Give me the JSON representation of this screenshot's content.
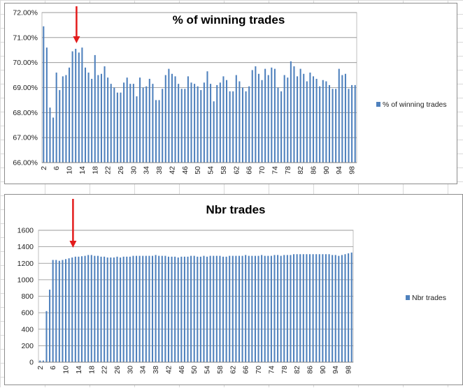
{
  "chart_data": [
    {
      "type": "bar",
      "title": "% of winning trades",
      "xlabel": "",
      "ylabel": "",
      "legend_position": "right",
      "grid": true,
      "ylim": [
        66.0,
        72.0
      ],
      "y_ticks": [
        "72.00%",
        "71.00%",
        "70.00%",
        "69.00%",
        "68.00%",
        "67.00%",
        "66.00%"
      ],
      "y_tick_values": [
        72,
        71,
        70,
        69,
        68,
        67,
        66
      ],
      "x_tick_labels": [
        "2",
        "6",
        "10",
        "14",
        "18",
        "22",
        "26",
        "30",
        "34",
        "38",
        "42",
        "46",
        "50",
        "54",
        "58",
        "62",
        "66",
        "70",
        "74",
        "78",
        "82",
        "86",
        "90",
        "94",
        "98"
      ],
      "series": [
        {
          "name": "% of winning trades",
          "color": "#4f81bd",
          "x": [
            2,
            3,
            4,
            5,
            6,
            7,
            8,
            9,
            10,
            11,
            12,
            13,
            14,
            15,
            16,
            17,
            18,
            19,
            20,
            21,
            22,
            23,
            24,
            25,
            26,
            27,
            28,
            29,
            30,
            31,
            32,
            33,
            34,
            35,
            36,
            37,
            38,
            39,
            40,
            41,
            42,
            43,
            44,
            45,
            46,
            47,
            48,
            49,
            50,
            51,
            52,
            53,
            54,
            55,
            56,
            57,
            58,
            59,
            60,
            61,
            62,
            63,
            64,
            65,
            66,
            67,
            68,
            69,
            70,
            71,
            72,
            73,
            74,
            75,
            76,
            77,
            78,
            79,
            80,
            81,
            82,
            83,
            84,
            85,
            86,
            87,
            88,
            89,
            90,
            91,
            92,
            93,
            94,
            95,
            96,
            97,
            98,
            99
          ],
          "values": [
            71.45,
            70.6,
            68.2,
            67.8,
            69.6,
            68.9,
            69.45,
            69.5,
            69.8,
            70.45,
            70.55,
            70.4,
            70.6,
            69.8,
            69.6,
            69.35,
            70.3,
            69.5,
            69.55,
            69.85,
            69.4,
            69.15,
            69.0,
            68.8,
            68.8,
            69.2,
            69.4,
            69.15,
            69.15,
            68.65,
            69.4,
            69.0,
            69.05,
            69.35,
            69.15,
            68.5,
            68.5,
            68.95,
            69.5,
            69.75,
            69.55,
            69.45,
            69.15,
            68.95,
            68.95,
            69.45,
            69.2,
            69.15,
            69.05,
            68.9,
            69.2,
            69.65,
            69.15,
            68.45,
            69.1,
            69.2,
            69.45,
            69.3,
            68.85,
            68.85,
            69.5,
            69.25,
            69.0,
            68.85,
            69.05,
            69.7,
            69.85,
            69.55,
            69.3,
            69.75,
            69.5,
            69.8,
            69.75,
            69.0,
            68.85,
            69.5,
            69.4,
            70.05,
            69.85,
            69.45,
            69.75,
            69.55,
            69.25,
            69.6,
            69.45,
            69.35,
            69.05,
            69.3,
            69.25,
            69.1,
            68.95,
            68.95,
            69.75,
            69.5,
            69.55,
            68.95,
            69.1,
            69.1
          ]
        }
      ],
      "annotations": [
        {
          "type": "arrow",
          "color": "#e31b1b",
          "points_to_x": 14
        }
      ]
    },
    {
      "type": "bar",
      "title": "Nbr trades",
      "xlabel": "",
      "ylabel": "",
      "legend_position": "right",
      "grid": true,
      "ylim": [
        0,
        1600
      ],
      "y_ticks": [
        "1600",
        "1400",
        "1200",
        "1000",
        "800",
        "600",
        "400",
        "200",
        "0"
      ],
      "y_tick_values": [
        1600,
        1400,
        1200,
        1000,
        800,
        600,
        400,
        200,
        0
      ],
      "x_tick_labels": [
        "2",
        "6",
        "10",
        "14",
        "18",
        "22",
        "26",
        "30",
        "34",
        "38",
        "42",
        "46",
        "50",
        "54",
        "58",
        "62",
        "66",
        "70",
        "74",
        "78",
        "82",
        "86",
        "90",
        "94",
        "98"
      ],
      "series": [
        {
          "name": "Nbr trades",
          "color": "#4f81bd",
          "x": [
            2,
            3,
            4,
            5,
            6,
            7,
            8,
            9,
            10,
            11,
            12,
            13,
            14,
            15,
            16,
            17,
            18,
            19,
            20,
            21,
            22,
            23,
            24,
            25,
            26,
            27,
            28,
            29,
            30,
            31,
            32,
            33,
            34,
            35,
            36,
            37,
            38,
            39,
            40,
            41,
            42,
            43,
            44,
            45,
            46,
            47,
            48,
            49,
            50,
            51,
            52,
            53,
            54,
            55,
            56,
            57,
            58,
            59,
            60,
            61,
            62,
            63,
            64,
            65,
            66,
            67,
            68,
            69,
            70,
            71,
            72,
            73,
            74,
            75,
            76,
            77,
            78,
            79,
            80,
            81,
            82,
            83,
            84,
            85,
            86,
            87,
            88,
            89,
            90,
            91,
            92,
            93,
            94,
            95,
            96,
            97,
            98,
            99
          ],
          "values": [
            20,
            20,
            620,
            880,
            1240,
            1240,
            1230,
            1240,
            1250,
            1260,
            1270,
            1280,
            1280,
            1285,
            1290,
            1300,
            1300,
            1290,
            1290,
            1280,
            1280,
            1270,
            1270,
            1270,
            1280,
            1270,
            1280,
            1280,
            1280,
            1290,
            1290,
            1290,
            1290,
            1290,
            1290,
            1290,
            1300,
            1290,
            1290,
            1290,
            1280,
            1280,
            1280,
            1270,
            1280,
            1280,
            1280,
            1290,
            1290,
            1280,
            1280,
            1290,
            1280,
            1290,
            1290,
            1290,
            1290,
            1280,
            1280,
            1290,
            1290,
            1290,
            1290,
            1290,
            1300,
            1290,
            1290,
            1290,
            1290,
            1300,
            1290,
            1290,
            1290,
            1300,
            1300,
            1290,
            1300,
            1300,
            1300,
            1310,
            1310,
            1310,
            1310,
            1310,
            1310,
            1310,
            1310,
            1310,
            1310,
            1310,
            1310,
            1300,
            1300,
            1290,
            1300,
            1310,
            1320,
            1330
          ]
        }
      ],
      "annotations": [
        {
          "type": "arrow",
          "color": "#e31b1b",
          "points_to_x": 14
        }
      ]
    }
  ]
}
